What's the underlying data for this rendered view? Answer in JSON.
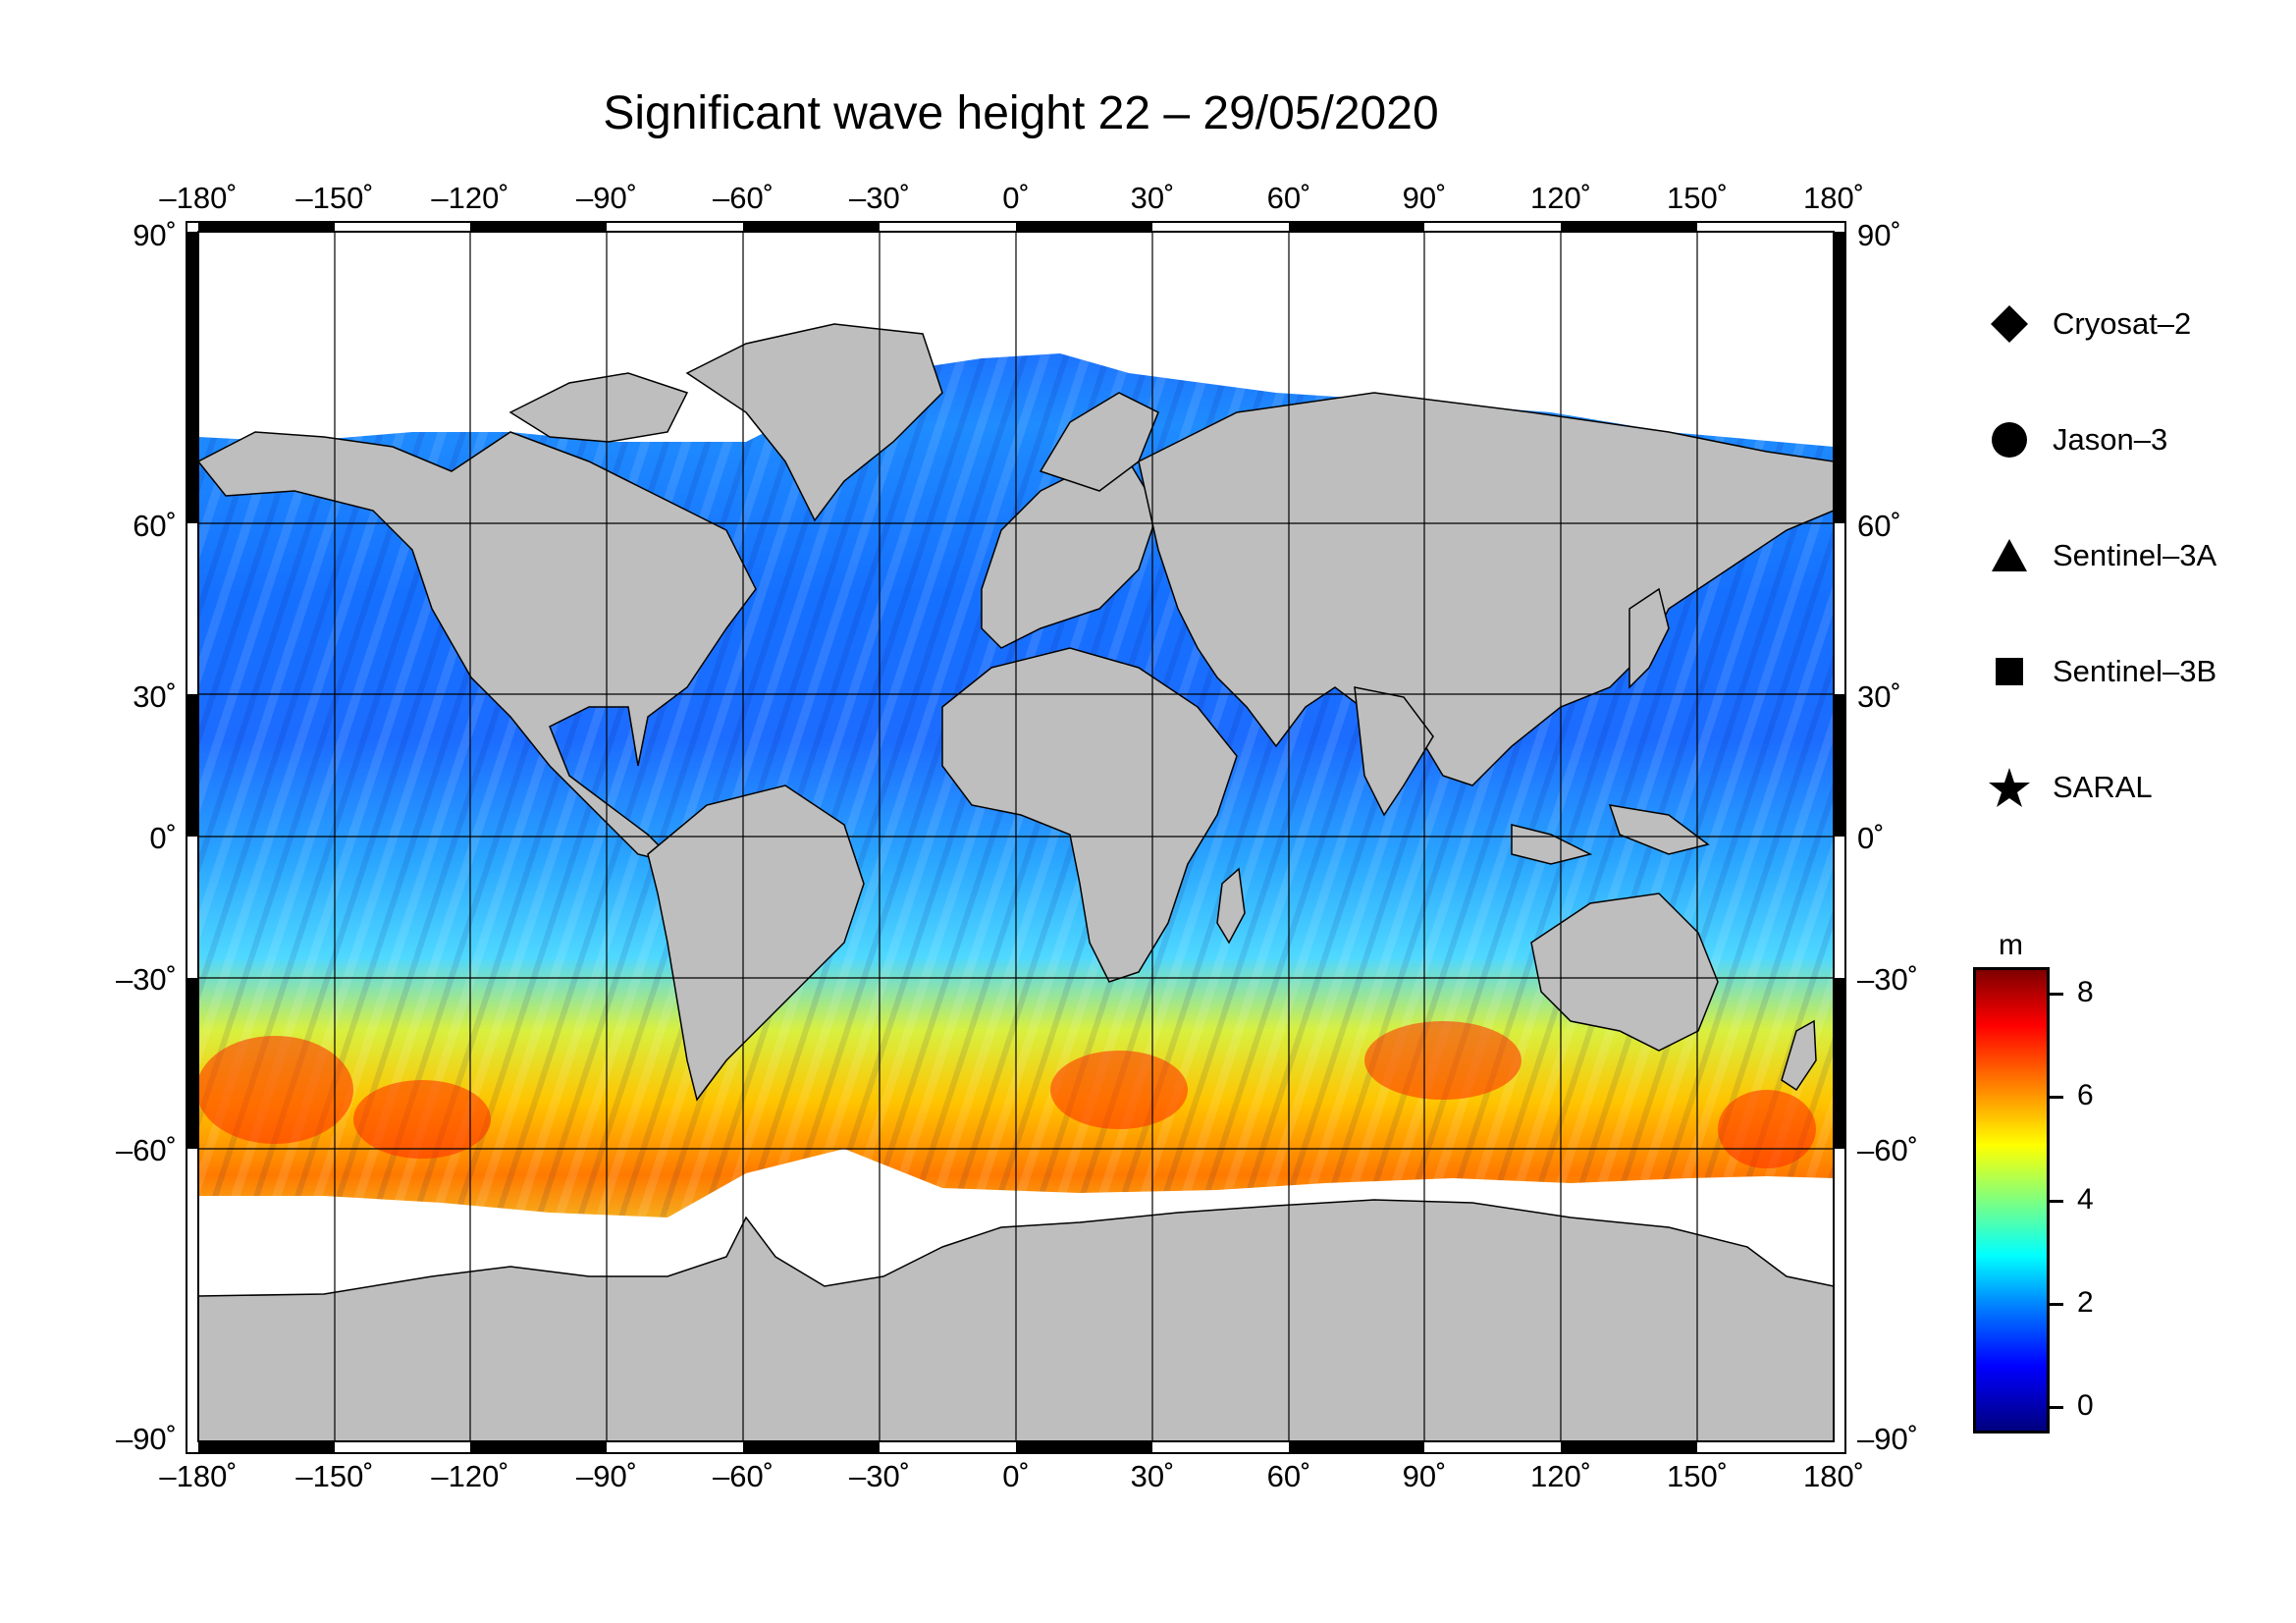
{
  "title": "Significant wave height 22 – 29/05/2020",
  "longitude_ticks": [
    "–180˚",
    "–150˚",
    "–120˚",
    "–90˚",
    "–60˚",
    "–30˚",
    "0˚",
    "30˚",
    "60˚",
    "90˚",
    "120˚",
    "150˚",
    "180˚"
  ],
  "latitude_ticks": [
    "90˚",
    "60˚",
    "30˚",
    "0˚",
    "–30˚",
    "–60˚",
    "–90˚"
  ],
  "legend": [
    {
      "label": "Cryosat–2",
      "icon": "diamond-icon"
    },
    {
      "label": "Jason–3",
      "icon": "circle-icon"
    },
    {
      "label": "Sentinel–3A",
      "icon": "triangle-icon"
    },
    {
      "label": "Sentinel–3B",
      "icon": "square-icon"
    },
    {
      "label": "SARAL",
      "icon": "star-icon"
    }
  ],
  "colorbar": {
    "unit": "m",
    "ticks": [
      "8",
      "6",
      "4",
      "2",
      "0"
    ],
    "range": [
      -0.6,
      8.6
    ],
    "colors": [
      "#00007f",
      "#0000ff",
      "#0080ff",
      "#00ffff",
      "#7fff7f",
      "#ffff00",
      "#ff8000",
      "#ff0000",
      "#7f0000"
    ]
  },
  "map": {
    "land_color": "#bebebe",
    "ice_color": "#ffffff",
    "lon_range": [
      -180,
      180
    ],
    "lat_range": [
      -90,
      90
    ]
  }
}
